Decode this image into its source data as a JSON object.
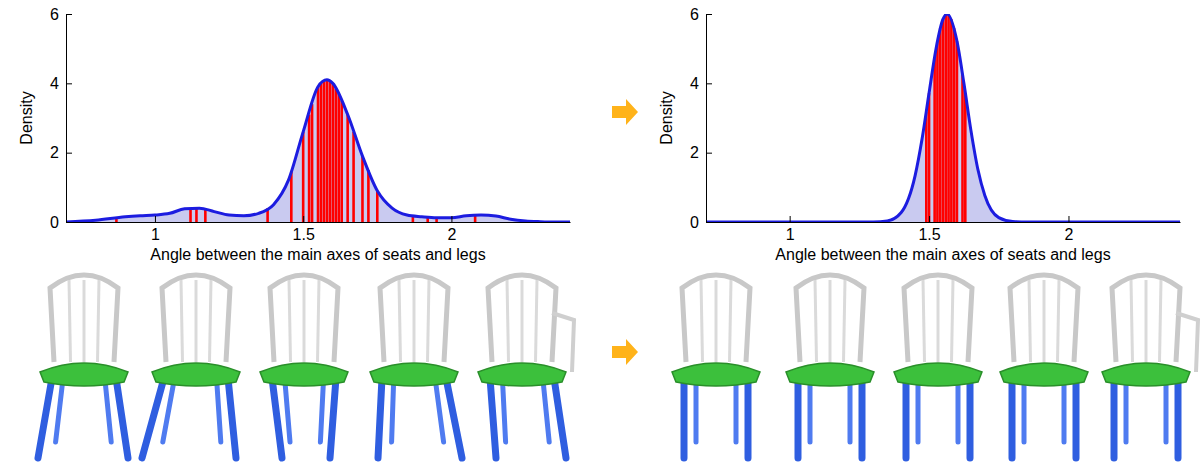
{
  "chart_data": [
    {
      "type": "density",
      "x_label": "Angle between the main axes of seats and legs",
      "y_label": "Density",
      "xlim": [
        0.7,
        2.4
      ],
      "ylim": [
        0,
        6
      ],
      "xticks": [
        1,
        1.5,
        2
      ],
      "yticks": [
        0,
        2,
        4,
        6
      ],
      "series": [
        {
          "type": "area",
          "color": "#1c1ce0",
          "x": [
            0.7,
            0.8,
            0.9,
            0.95,
            1.0,
            1.05,
            1.1,
            1.15,
            1.2,
            1.25,
            1.3,
            1.35,
            1.4,
            1.45,
            1.5,
            1.55,
            1.58,
            1.6,
            1.65,
            1.7,
            1.75,
            1.8,
            1.85,
            1.9,
            1.95,
            2.0,
            2.05,
            2.1,
            2.15,
            2.2,
            2.25,
            2.3,
            2.35,
            2.4
          ],
          "values": [
            0.0,
            0.05,
            0.15,
            0.18,
            0.2,
            0.25,
            0.38,
            0.4,
            0.3,
            0.2,
            0.18,
            0.25,
            0.5,
            1.2,
            2.6,
            3.9,
            4.1,
            4.0,
            3.1,
            1.9,
            0.9,
            0.4,
            0.2,
            0.15,
            0.12,
            0.12,
            0.18,
            0.2,
            0.17,
            0.08,
            0.03,
            0.01,
            0.0,
            0.0
          ]
        },
        {
          "type": "rug",
          "color": "#ff0000",
          "x": [
            0.87,
            1.12,
            1.14,
            1.17,
            1.38,
            1.46,
            1.5,
            1.52,
            1.53,
            1.55,
            1.56,
            1.57,
            1.58,
            1.59,
            1.6,
            1.61,
            1.62,
            1.63,
            1.65,
            1.67,
            1.7,
            1.72,
            1.75,
            1.87,
            1.92,
            1.95,
            2.08
          ],
          "values": [
            0.13,
            0.39,
            0.4,
            0.37,
            0.4,
            1.45,
            2.6,
            3.1,
            3.4,
            3.9,
            4.0,
            4.05,
            4.1,
            4.08,
            4.0,
            3.85,
            3.7,
            3.5,
            3.1,
            2.6,
            1.9,
            1.5,
            0.9,
            0.18,
            0.14,
            0.12,
            0.19
          ]
        }
      ]
    },
    {
      "type": "density",
      "x_label": "Angle between the main axes of seats and legs",
      "y_label": "Density",
      "xlim": [
        0.7,
        2.4
      ],
      "ylim": [
        0,
        6
      ],
      "xticks": [
        1,
        1.5,
        2
      ],
      "yticks": [
        0,
        2,
        4,
        6
      ],
      "series": [
        {
          "type": "area",
          "color": "#1c1ce0",
          "x": [
            0.7,
            1.25,
            1.3,
            1.35,
            1.4,
            1.45,
            1.475,
            1.5,
            1.525,
            1.55,
            1.565,
            1.6,
            1.625,
            1.65,
            1.675,
            1.7,
            1.75,
            1.8,
            1.85,
            2.4
          ],
          "values": [
            0.0,
            0.0,
            0.002,
            0.032,
            0.276,
            1.34,
            2.4,
            3.72,
            5.0,
            5.85,
            6.0,
            5.22,
            4.0,
            2.65,
            1.52,
            0.765,
            0.125,
            0.012,
            0.0,
            0.0
          ]
        },
        {
          "type": "rug",
          "color": "#ff0000",
          "x": [
            1.49,
            1.5,
            1.52,
            1.53,
            1.54,
            1.55,
            1.56,
            1.57,
            1.58,
            1.59,
            1.6,
            1.62,
            1.63
          ],
          "values": [
            3.18,
            3.72,
            4.76,
            5.22,
            5.59,
            5.85,
            5.99,
            5.99,
            5.85,
            5.59,
            5.22,
            4.25,
            3.72
          ]
        }
      ]
    }
  ]
}
